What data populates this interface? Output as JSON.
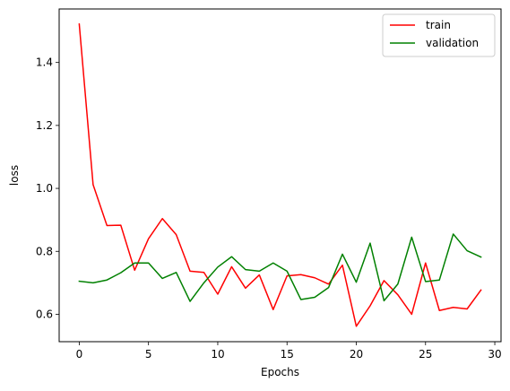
{
  "chart_data": {
    "type": "line",
    "title": "",
    "xlabel": "Epochs",
    "ylabel": "loss",
    "xlim": [
      -1.45,
      30.45
    ],
    "ylim": [
      0.513,
      1.57
    ],
    "xticks": [
      0,
      5,
      10,
      15,
      20,
      25,
      30
    ],
    "xtick_labels": [
      "0",
      "5",
      "10",
      "15",
      "20",
      "25",
      "30"
    ],
    "yticks": [
      0.6,
      0.8,
      1.0,
      1.2,
      1.4
    ],
    "ytick_labels": [
      "0.6",
      "0.8",
      "1.0",
      "1.2",
      "1.4"
    ],
    "grid": false,
    "legend_position": "top-right",
    "x": [
      0,
      1,
      2,
      3,
      4,
      5,
      6,
      7,
      8,
      9,
      10,
      11,
      12,
      13,
      14,
      15,
      16,
      17,
      18,
      19,
      20,
      21,
      22,
      23,
      24,
      25,
      26,
      27,
      28,
      29
    ],
    "series": [
      {
        "name": "train",
        "color": "#ff0000",
        "values": [
          1.522,
          1.012,
          0.882,
          0.883,
          0.74,
          0.84,
          0.904,
          0.853,
          0.737,
          0.733,
          0.664,
          0.751,
          0.683,
          0.725,
          0.615,
          0.722,
          0.726,
          0.716,
          0.696,
          0.756,
          0.562,
          0.627,
          0.707,
          0.662,
          0.6,
          0.763,
          0.612,
          0.622,
          0.617,
          0.677
        ]
      },
      {
        "name": "validation",
        "color": "#008000",
        "values": [
          0.705,
          0.7,
          0.709,
          0.732,
          0.763,
          0.763,
          0.714,
          0.733,
          0.641,
          0.7,
          0.75,
          0.783,
          0.742,
          0.737,
          0.763,
          0.737,
          0.647,
          0.654,
          0.685,
          0.791,
          0.702,
          0.826,
          0.643,
          0.696,
          0.845,
          0.704,
          0.709,
          0.855,
          0.802,
          0.782
        ]
      }
    ]
  }
}
